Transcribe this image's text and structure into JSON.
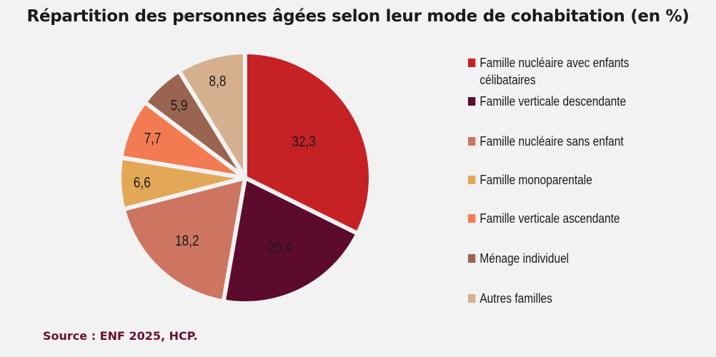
{
  "title": "Répartition des personnes âgées selon leur mode de cohabitation (en %)",
  "source": "Source : ENF 2025, HCP.",
  "chart_data": {
    "type": "pie",
    "title": "Répartition des personnes âgées selon leur mode de cohabitation (en %)",
    "unit": "%",
    "start_angle": "12 o'clock",
    "direction": "clockwise",
    "legend_position": "right",
    "slices": [
      {
        "label": "Famille nucléaire avec enfants célibataires",
        "value": 32.3,
        "display": "32,3",
        "color": "#c62124"
      },
      {
        "label": "Famille verticale descendante",
        "value": 20.4,
        "display": "20,4",
        "color": "#5c0b2d"
      },
      {
        "label": "Famille nucléaire sans enfant",
        "value": 18.2,
        "display": "18,2",
        "color": "#cd7560"
      },
      {
        "label": "Famille monoparentale",
        "value": 6.6,
        "display": "6,6",
        "color": "#e3a857"
      },
      {
        "label": "Famille verticale ascendante",
        "value": 7.7,
        "display": "7,7",
        "color": "#f27b52"
      },
      {
        "label": "Ménage individuel",
        "value": 5.9,
        "display": "5,9",
        "color": "#9a6550"
      },
      {
        "label": "Autres familles",
        "value": 8.8,
        "display": "8,8",
        "color": "#d5b08e"
      }
    ],
    "legend": [
      {
        "line1": "Famille nucléaire avec enfants",
        "line2": "célibataires"
      },
      {
        "line1": "Famille verticale descendante"
      },
      {
        "line1": "Famille nucléaire sans enfant"
      },
      {
        "line1": "Famille monoparentale"
      },
      {
        "line1": "Famille verticale ascendante"
      },
      {
        "line1": "Ménage individuel"
      },
      {
        "line1": "Autres familles"
      }
    ]
  }
}
